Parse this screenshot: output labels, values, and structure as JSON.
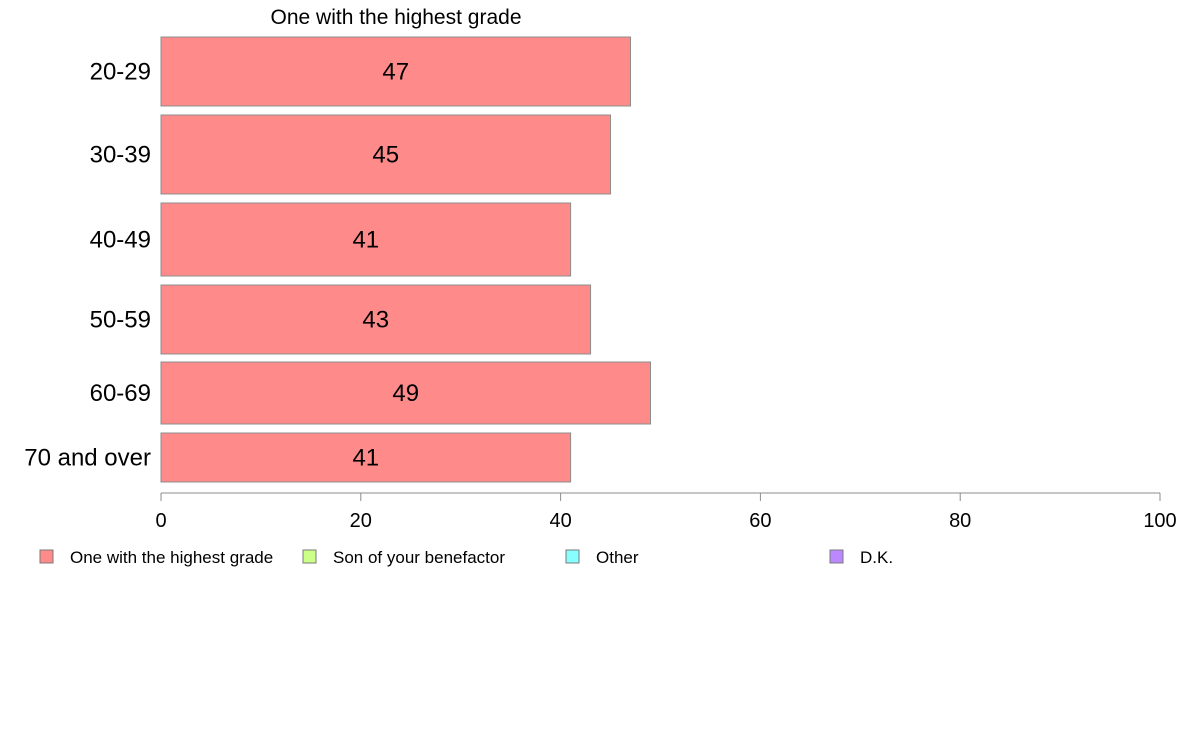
{
  "chart_data": {
    "type": "bar",
    "orientation": "horizontal",
    "title": "One with the highest grade",
    "categories": [
      "20-29",
      "30-39",
      "40-49",
      "50-59",
      "60-69",
      "70 and over"
    ],
    "series": [
      {
        "name": "One with the highest grade",
        "values": [
          47,
          45,
          41,
          43,
          49,
          41
        ],
        "color": "#ff8a8a"
      }
    ],
    "data_labels": [
      "47",
      "45",
      "41",
      "43",
      "49",
      "41"
    ],
    "xlim": [
      0,
      100
    ],
    "x_ticks": [
      0,
      20,
      40,
      60,
      80,
      100
    ],
    "x_tick_labels": [
      "0",
      "20",
      "40",
      "60",
      "80",
      "100"
    ],
    "xlabel": "",
    "ylabel": "",
    "grid": false,
    "legend_position": "bottom",
    "legend": [
      {
        "label": "One with the highest grade",
        "color": "#ff8a8a"
      },
      {
        "label": "Son of your benefactor",
        "color": "#ccff88"
      },
      {
        "label": "Other",
        "color": "#88ffff"
      },
      {
        "label": "D.K.",
        "color": "#bb88ff"
      }
    ]
  }
}
